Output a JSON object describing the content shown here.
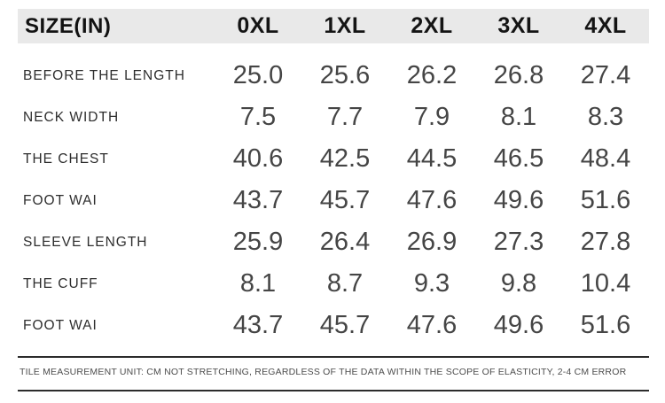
{
  "header": {
    "label": "SIZE(IN)",
    "columns": [
      "0XL",
      "1XL",
      "2XL",
      "3XL",
      "4XL"
    ]
  },
  "rows": [
    {
      "label": "BEFORE THE LENGTH",
      "values": [
        "25.0",
        "25.6",
        "26.2",
        "26.8",
        "27.4"
      ]
    },
    {
      "label": "NECK WIDTH",
      "values": [
        "7.5",
        "7.7",
        "7.9",
        "8.1",
        "8.3"
      ]
    },
    {
      "label": "THE CHEST",
      "values": [
        "40.6",
        "42.5",
        "44.5",
        "46.5",
        "48.4"
      ]
    },
    {
      "label": "FOOT WAI",
      "values": [
        "43.7",
        "45.7",
        "47.6",
        "49.6",
        "51.6"
      ]
    },
    {
      "label": "SLEEVE LENGTH",
      "values": [
        "25.9",
        "26.4",
        "26.9",
        "27.3",
        "27.8"
      ]
    },
    {
      "label": "THE CUFF",
      "values": [
        "8.1",
        "8.7",
        "9.3",
        "9.8",
        "10.4"
      ]
    },
    {
      "label": "FOOT WAI",
      "values": [
        "43.7",
        "45.7",
        "47.6",
        "49.6",
        "51.6"
      ]
    }
  ],
  "footer": {
    "note": "TILE MEASUREMENT UNIT: CM NOT STRETCHING, REGARDLESS OF THE DATA WITHIN THE SCOPE OF ELASTICITY, 2-4 CM ERROR"
  },
  "colors": {
    "header_bg": "#e9e9e9",
    "header_text": "#141414",
    "label_text": "#2d2d2d",
    "value_text": "#454545",
    "rule": "#2c2c2c"
  },
  "chart_data": {
    "type": "table",
    "title": "SIZE(IN)",
    "columns": [
      "SIZE(IN)",
      "0XL",
      "1XL",
      "2XL",
      "3XL",
      "4XL"
    ],
    "rows": [
      [
        "BEFORE THE LENGTH",
        25.0,
        25.6,
        26.2,
        26.8,
        27.4
      ],
      [
        "NECK WIDTH",
        7.5,
        7.7,
        7.9,
        8.1,
        8.3
      ],
      [
        "THE CHEST",
        40.6,
        42.5,
        44.5,
        46.5,
        48.4
      ],
      [
        "FOOT WAI",
        43.7,
        45.7,
        47.6,
        49.6,
        51.6
      ],
      [
        "SLEEVE LENGTH",
        25.9,
        26.4,
        26.9,
        27.3,
        27.8
      ],
      [
        "THE CUFF",
        8.1,
        8.7,
        9.3,
        9.8,
        10.4
      ],
      [
        "FOOT WAI",
        43.7,
        45.7,
        47.6,
        49.6,
        51.6
      ]
    ],
    "note": "TILE MEASUREMENT UNIT: CM NOT STRETCHING, REGARDLESS OF THE DATA WITHIN THE SCOPE OF ELASTICITY, 2-4 CM ERROR"
  }
}
